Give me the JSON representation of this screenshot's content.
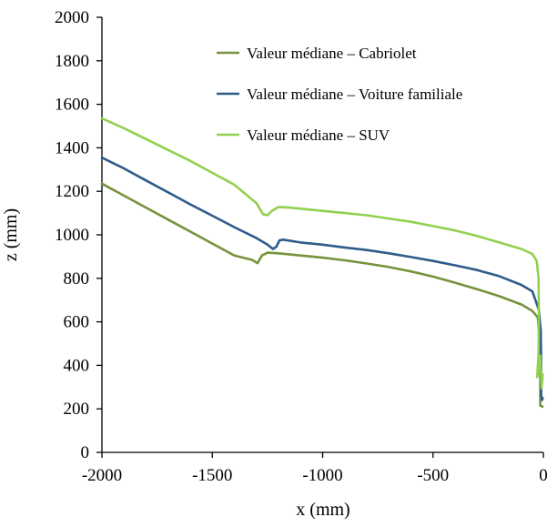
{
  "chart_data": {
    "type": "line",
    "title": "",
    "xlabel": "x (mm)",
    "ylabel": "z (mm)",
    "xlim": [
      -2000,
      0
    ],
    "ylim": [
      0,
      2000
    ],
    "xticks": [
      -2000,
      -1500,
      -1000,
      -500,
      0
    ],
    "yticks": [
      0,
      200,
      400,
      600,
      800,
      1000,
      1200,
      1400,
      1600,
      1800,
      2000
    ],
    "xtick_labels": [
      "-2000",
      "-1500",
      "-1000",
      "-500",
      "0"
    ],
    "ytick_labels": [
      "0",
      "200",
      "400",
      "600",
      "800",
      "1000",
      "1200",
      "1400",
      "1600",
      "1800",
      "2000"
    ],
    "grid": false,
    "legend_position": "top-right",
    "series": [
      {
        "name": "Valeur médiane – Cabriolet",
        "color": "#77933c",
        "points": [
          [
            -2000,
            1235
          ],
          [
            -1900,
            1180
          ],
          [
            -1800,
            1125
          ],
          [
            -1700,
            1070
          ],
          [
            -1600,
            1015
          ],
          [
            -1500,
            960
          ],
          [
            -1400,
            905
          ],
          [
            -1320,
            885
          ],
          [
            -1295,
            870
          ],
          [
            -1275,
            905
          ],
          [
            -1250,
            918
          ],
          [
            -1200,
            915
          ],
          [
            -1100,
            905
          ],
          [
            -1000,
            895
          ],
          [
            -900,
            883
          ],
          [
            -800,
            868
          ],
          [
            -700,
            852
          ],
          [
            -600,
            832
          ],
          [
            -500,
            808
          ],
          [
            -400,
            780
          ],
          [
            -300,
            750
          ],
          [
            -200,
            718
          ],
          [
            -100,
            680
          ],
          [
            -50,
            650
          ],
          [
            -25,
            620
          ],
          [
            -15,
            500
          ],
          [
            -14,
            330
          ],
          [
            -14,
            215
          ],
          [
            -8,
            213
          ],
          [
            -4,
            210
          ]
        ]
      },
      {
        "name": "Valeur médiane – Voiture familiale",
        "color": "#2e5c8a",
        "points": [
          [
            -2000,
            1355
          ],
          [
            -1900,
            1305
          ],
          [
            -1800,
            1250
          ],
          [
            -1700,
            1195
          ],
          [
            -1600,
            1140
          ],
          [
            -1500,
            1088
          ],
          [
            -1400,
            1035
          ],
          [
            -1300,
            985
          ],
          [
            -1250,
            955
          ],
          [
            -1225,
            935
          ],
          [
            -1210,
            945
          ],
          [
            -1195,
            975
          ],
          [
            -1180,
            978
          ],
          [
            -1100,
            965
          ],
          [
            -1000,
            955
          ],
          [
            -900,
            942
          ],
          [
            -800,
            930
          ],
          [
            -700,
            915
          ],
          [
            -600,
            898
          ],
          [
            -500,
            880
          ],
          [
            -400,
            860
          ],
          [
            -300,
            838
          ],
          [
            -200,
            810
          ],
          [
            -100,
            770
          ],
          [
            -50,
            740
          ],
          [
            -20,
            655
          ],
          [
            -12,
            560
          ],
          [
            -10,
            400
          ],
          [
            -10,
            260
          ],
          [
            -6,
            240
          ],
          [
            -3,
            250
          ]
        ]
      },
      {
        "name": "Valeur médiane – SUV",
        "color": "#92d050",
        "points": [
          [
            -2000,
            1535
          ],
          [
            -1900,
            1490
          ],
          [
            -1800,
            1440
          ],
          [
            -1700,
            1390
          ],
          [
            -1600,
            1340
          ],
          [
            -1500,
            1285
          ],
          [
            -1400,
            1230
          ],
          [
            -1300,
            1145
          ],
          [
            -1270,
            1095
          ],
          [
            -1250,
            1090
          ],
          [
            -1230,
            1110
          ],
          [
            -1200,
            1128
          ],
          [
            -1150,
            1125
          ],
          [
            -1000,
            1110
          ],
          [
            -900,
            1100
          ],
          [
            -800,
            1090
          ],
          [
            -700,
            1075
          ],
          [
            -600,
            1060
          ],
          [
            -500,
            1040
          ],
          [
            -400,
            1020
          ],
          [
            -300,
            995
          ],
          [
            -200,
            965
          ],
          [
            -100,
            935
          ],
          [
            -50,
            912
          ],
          [
            -30,
            880
          ],
          [
            -22,
            800
          ],
          [
            -20,
            640
          ],
          [
            -22,
            450
          ],
          [
            -28,
            345
          ],
          [
            -14,
            445
          ],
          [
            -8,
            295
          ],
          [
            -3,
            360
          ]
        ]
      }
    ]
  }
}
